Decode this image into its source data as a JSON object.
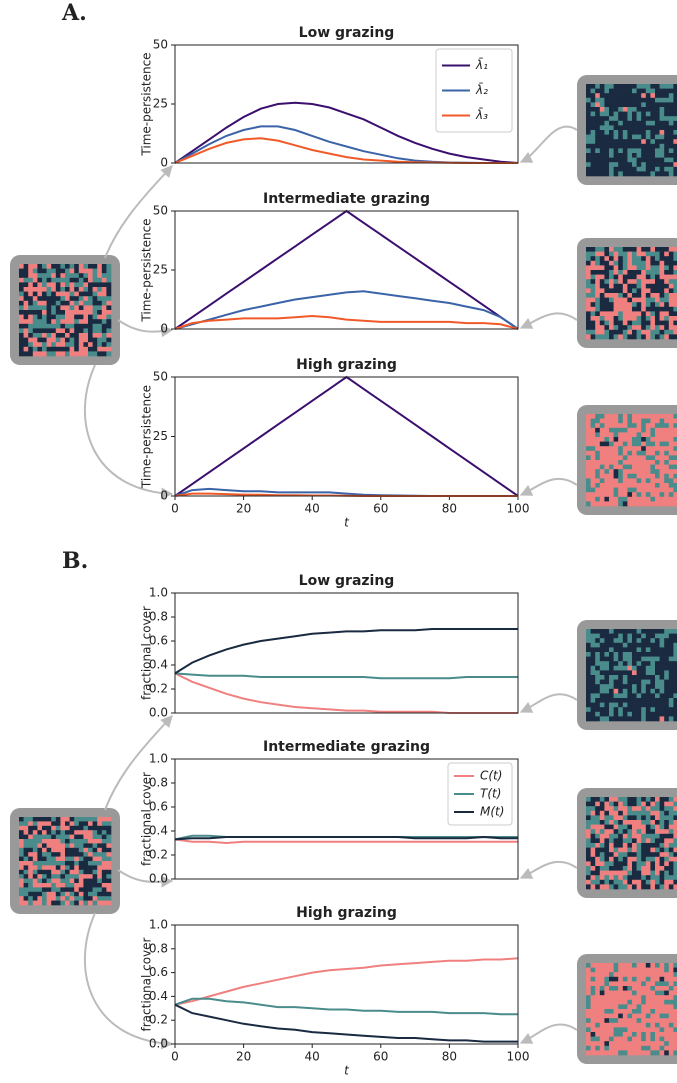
{
  "panel_labels": [
    "A.",
    "B."
  ],
  "chart_data": [
    {
      "type": "line",
      "title": "Low grazing",
      "ylabel": "Time-persistence",
      "legend": "upper right",
      "x": [
        0,
        5,
        10,
        15,
        20,
        25,
        30,
        35,
        40,
        45,
        50,
        55,
        60,
        65,
        70,
        75,
        80,
        85,
        90,
        95,
        100
      ],
      "xlim": [
        0,
        100
      ],
      "ylim": [
        0,
        50
      ],
      "yticks": [
        0,
        25,
        50
      ],
      "series": [
        {
          "name": "λ̄₁",
          "color": "#3b0f6f",
          "values": [
            0,
            5,
            10,
            15,
            19.5,
            23,
            25,
            25.5,
            25,
            23.5,
            21,
            18.5,
            15,
            11.5,
            8.5,
            6,
            4,
            2.5,
            1.5,
            0.5,
            0
          ]
        },
        {
          "name": "λ̄₂",
          "color": "#3b63a8",
          "values": [
            0,
            4,
            8,
            11.5,
            14,
            15.5,
            15.5,
            14,
            11.5,
            9,
            7,
            5,
            3.5,
            2,
            1,
            0.5,
            0.2,
            0.1,
            0,
            0,
            0
          ]
        },
        {
          "name": "λ̄₃",
          "color": "#f05a28",
          "values": [
            0,
            3,
            6,
            8.5,
            10,
            10.5,
            9.5,
            7.5,
            5.5,
            4,
            2.5,
            1.5,
            1,
            0.5,
            0.3,
            0.2,
            0.1,
            0,
            0,
            0,
            0
          ]
        }
      ]
    },
    {
      "type": "line",
      "title": "Intermediate grazing",
      "ylabel": "Time-persistence",
      "x": [
        0,
        5,
        10,
        15,
        20,
        25,
        30,
        35,
        40,
        45,
        50,
        55,
        60,
        65,
        70,
        75,
        80,
        85,
        90,
        95,
        100
      ],
      "xlim": [
        0,
        100
      ],
      "ylim": [
        0,
        50
      ],
      "yticks": [
        0,
        25,
        50
      ],
      "series": [
        {
          "color": "#3b0f6f",
          "values": [
            0,
            5,
            10,
            15,
            20,
            25,
            30,
            35,
            40,
            45,
            50,
            45,
            40,
            35,
            30,
            25,
            20,
            15,
            10,
            5,
            0
          ]
        },
        {
          "color": "#3b63a8",
          "values": [
            0,
            2,
            4,
            6,
            8,
            9.5,
            11,
            12.5,
            13.5,
            14.5,
            15.5,
            16,
            15,
            14,
            13,
            12,
            11,
            9.5,
            8,
            5,
            0
          ]
        },
        {
          "color": "#f05a28",
          "values": [
            0,
            2.5,
            3.5,
            4,
            4.5,
            4.5,
            4.5,
            5,
            5.5,
            5,
            4,
            3.5,
            3,
            3,
            3,
            3,
            3,
            2.5,
            2.5,
            2,
            0
          ]
        }
      ]
    },
    {
      "type": "line",
      "title": "High grazing",
      "ylabel": "Time-persistence",
      "xlabel": "t",
      "x": [
        0,
        5,
        10,
        15,
        20,
        25,
        30,
        35,
        40,
        45,
        50,
        55,
        60,
        65,
        70,
        75,
        80,
        85,
        90,
        95,
        100
      ],
      "xlim": [
        0,
        100
      ],
      "xticks": [
        0,
        20,
        40,
        60,
        80,
        100
      ],
      "ylim": [
        0,
        50
      ],
      "yticks": [
        0,
        25,
        50
      ],
      "series": [
        {
          "color": "#3b0f6f",
          "values": [
            0,
            5,
            10,
            15,
            20,
            25,
            30,
            35,
            40,
            45,
            50,
            45,
            40,
            35,
            30,
            25,
            20,
            15,
            10,
            5,
            0
          ]
        },
        {
          "color": "#3b63a8",
          "values": [
            0,
            2.5,
            3,
            2.5,
            2,
            2,
            1.5,
            1.5,
            1.5,
            1.5,
            1,
            0.5,
            0.3,
            0.2,
            0.1,
            0,
            0,
            0,
            0,
            0,
            0
          ]
        },
        {
          "color": "#f05a28",
          "values": [
            0,
            1,
            1,
            0.8,
            0.6,
            0.5,
            0.3,
            0.3,
            0.2,
            0.2,
            0.1,
            0,
            0,
            0,
            0,
            0,
            0,
            0,
            0,
            0,
            0
          ]
        }
      ]
    },
    {
      "type": "line",
      "title": "Low grazing",
      "ylabel": "fractional cover",
      "x": [
        0,
        5,
        10,
        15,
        20,
        25,
        30,
        35,
        40,
        45,
        50,
        55,
        60,
        65,
        70,
        75,
        80,
        85,
        90,
        95,
        100
      ],
      "xlim": [
        0,
        100
      ],
      "ylim": [
        0,
        1
      ],
      "yticks": [
        {
          "value": 0,
          "label": "0.0"
        },
        0.2,
        0.4,
        0.6,
        0.8,
        {
          "value": 1,
          "label": "1.0"
        }
      ],
      "series": [
        {
          "color": "#f08080",
          "values": [
            0.33,
            0.26,
            0.21,
            0.16,
            0.12,
            0.09,
            0.07,
            0.05,
            0.04,
            0.03,
            0.02,
            0.02,
            0.01,
            0.01,
            0.01,
            0.01,
            0,
            0,
            0,
            0,
            0
          ]
        },
        {
          "color": "#4a8c8c",
          "values": [
            0.33,
            0.32,
            0.31,
            0.31,
            0.31,
            0.3,
            0.3,
            0.3,
            0.3,
            0.3,
            0.3,
            0.3,
            0.29,
            0.29,
            0.29,
            0.29,
            0.29,
            0.3,
            0.3,
            0.3,
            0.3
          ]
        },
        {
          "color": "#1a2a40",
          "values": [
            0.33,
            0.42,
            0.48,
            0.53,
            0.57,
            0.6,
            0.62,
            0.64,
            0.66,
            0.67,
            0.68,
            0.68,
            0.69,
            0.69,
            0.69,
            0.7,
            0.7,
            0.7,
            0.7,
            0.7,
            0.7
          ]
        }
      ]
    },
    {
      "type": "line",
      "title": "Intermediate grazing",
      "ylabel": "fractional cover",
      "legend": "upper right",
      "x": [
        0,
        5,
        10,
        15,
        20,
        25,
        30,
        35,
        40,
        45,
        50,
        55,
        60,
        65,
        70,
        75,
        80,
        85,
        90,
        95,
        100
      ],
      "xlim": [
        0,
        100
      ],
      "ylim": [
        0,
        1
      ],
      "yticks": [
        {
          "value": 0,
          "label": "0.0"
        },
        0.2,
        0.4,
        0.6,
        0.8,
        {
          "value": 1,
          "label": "1.0"
        }
      ],
      "series": [
        {
          "name": "C(t)",
          "color": "#f08080",
          "values": [
            0.33,
            0.31,
            0.31,
            0.3,
            0.31,
            0.31,
            0.31,
            0.31,
            0.31,
            0.31,
            0.31,
            0.31,
            0.31,
            0.31,
            0.31,
            0.31,
            0.31,
            0.31,
            0.31,
            0.31,
            0.31
          ]
        },
        {
          "name": "T(t)",
          "color": "#4a8c8c",
          "values": [
            0.33,
            0.36,
            0.36,
            0.35,
            0.35,
            0.35,
            0.35,
            0.35,
            0.35,
            0.35,
            0.35,
            0.35,
            0.35,
            0.35,
            0.35,
            0.35,
            0.35,
            0.35,
            0.35,
            0.35,
            0.35
          ]
        },
        {
          "name": "M(t)",
          "color": "#1a2a40",
          "values": [
            0.33,
            0.34,
            0.34,
            0.35,
            0.35,
            0.35,
            0.35,
            0.35,
            0.35,
            0.35,
            0.35,
            0.35,
            0.35,
            0.35,
            0.34,
            0.34,
            0.34,
            0.34,
            0.35,
            0.34,
            0.34
          ]
        }
      ]
    },
    {
      "type": "line",
      "title": "High grazing",
      "ylabel": "fractional cover",
      "xlabel": "t",
      "x": [
        0,
        5,
        10,
        15,
        20,
        25,
        30,
        35,
        40,
        45,
        50,
        55,
        60,
        65,
        70,
        75,
        80,
        85,
        90,
        95,
        100
      ],
      "xlim": [
        0,
        100
      ],
      "xticks": [
        0,
        20,
        40,
        60,
        80,
        100
      ],
      "ylim": [
        0,
        1
      ],
      "yticks": [
        {
          "value": 0,
          "label": "0.0"
        },
        0.2,
        0.4,
        0.6,
        0.8,
        {
          "value": 1,
          "label": "1.0"
        }
      ],
      "series": [
        {
          "color": "#f08080",
          "values": [
            0.33,
            0.36,
            0.4,
            0.44,
            0.48,
            0.51,
            0.54,
            0.57,
            0.6,
            0.62,
            0.63,
            0.64,
            0.66,
            0.67,
            0.68,
            0.69,
            0.7,
            0.7,
            0.71,
            0.71,
            0.72
          ]
        },
        {
          "color": "#4a8c8c",
          "values": [
            0.33,
            0.38,
            0.38,
            0.36,
            0.35,
            0.33,
            0.31,
            0.31,
            0.3,
            0.29,
            0.29,
            0.28,
            0.28,
            0.27,
            0.27,
            0.27,
            0.26,
            0.26,
            0.26,
            0.25,
            0.25
          ]
        },
        {
          "color": "#1a2a40",
          "values": [
            0.33,
            0.26,
            0.23,
            0.2,
            0.17,
            0.15,
            0.13,
            0.12,
            0.1,
            0.09,
            0.08,
            0.07,
            0.06,
            0.05,
            0.05,
            0.04,
            0.03,
            0.03,
            0.02,
            0.02,
            0.02
          ]
        }
      ]
    }
  ]
}
